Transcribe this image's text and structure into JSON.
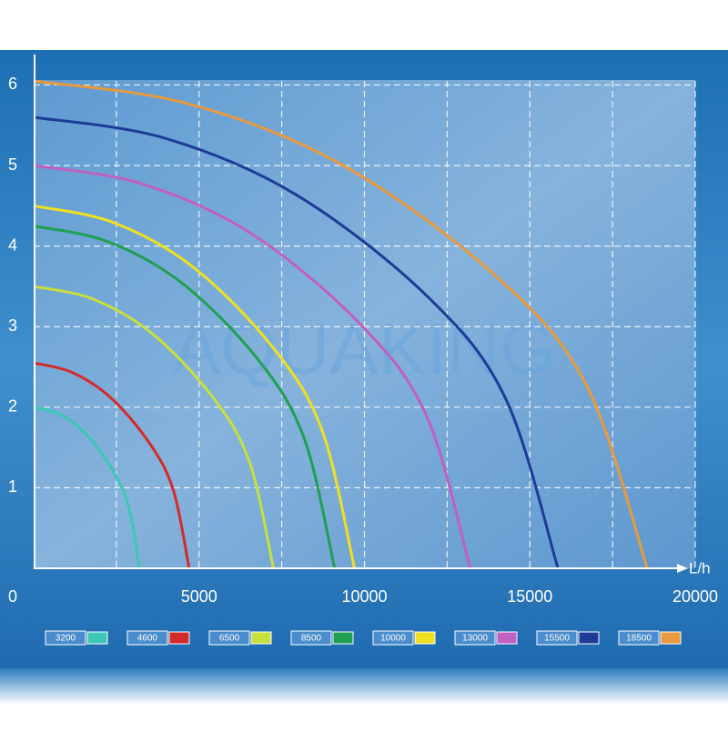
{
  "chart_data": {
    "type": "line",
    "watermark": "AQUAKING",
    "x_unit": "L/h",
    "xlim": [
      0,
      20000
    ],
    "ylim": [
      0,
      6.05
    ],
    "xticks": [
      0,
      5000,
      10000,
      15000,
      20000
    ],
    "yticks": [
      1,
      2,
      3,
      4,
      5,
      6
    ],
    "x_grid_lines": [
      2500,
      5000,
      7500,
      10000,
      12500,
      15000,
      17500,
      20000
    ],
    "grid": true,
    "series": [
      {
        "name": "3200",
        "color": "#3cc8b4",
        "x": [
          0,
          800,
          1600,
          2400,
          2880,
          3200
        ],
        "values": [
          2.0,
          1.91,
          1.66,
          1.21,
          0.75,
          0
        ]
      },
      {
        "name": "4600",
        "color": "#d42a2a",
        "x": [
          0,
          1175,
          2350,
          3525,
          4230,
          4700
        ],
        "values": [
          2.55,
          2.43,
          2.11,
          1.54,
          0.96,
          0
        ]
      },
      {
        "name": "6500",
        "color": "#c8e03c",
        "x": [
          0,
          1810,
          3625,
          5440,
          6525,
          7250
        ],
        "values": [
          3.5,
          3.34,
          2.9,
          2.11,
          1.32,
          0
        ]
      },
      {
        "name": "8500",
        "color": "#1fa050",
        "x": [
          0,
          2275,
          4550,
          6825,
          8190,
          9100
        ],
        "values": [
          4.25,
          4.05,
          3.52,
          2.57,
          1.6,
          0
        ]
      },
      {
        "name": "10000",
        "color": "#f0e020",
        "x": [
          0,
          2425,
          4850,
          7275,
          8730,
          9700
        ],
        "values": [
          4.5,
          4.29,
          3.73,
          2.72,
          1.7,
          0
        ]
      },
      {
        "name": "13000",
        "color": "#c060c0",
        "x": [
          0,
          3300,
          6600,
          9900,
          11880,
          13200
        ],
        "values": [
          5.0,
          4.77,
          4.15,
          3.02,
          1.89,
          0
        ]
      },
      {
        "name": "15500",
        "color": "#1e3c96",
        "x": [
          0,
          3960,
          7925,
          11890,
          14265,
          15850
        ],
        "values": [
          5.6,
          5.34,
          4.64,
          3.38,
          2.11,
          0
        ]
      },
      {
        "name": "18500",
        "color": "#e89a3c",
        "x": [
          0,
          4640,
          9275,
          13910,
          16700,
          18550
        ],
        "values": [
          6.05,
          5.77,
          5.02,
          3.65,
          2.28,
          0
        ]
      }
    ]
  }
}
